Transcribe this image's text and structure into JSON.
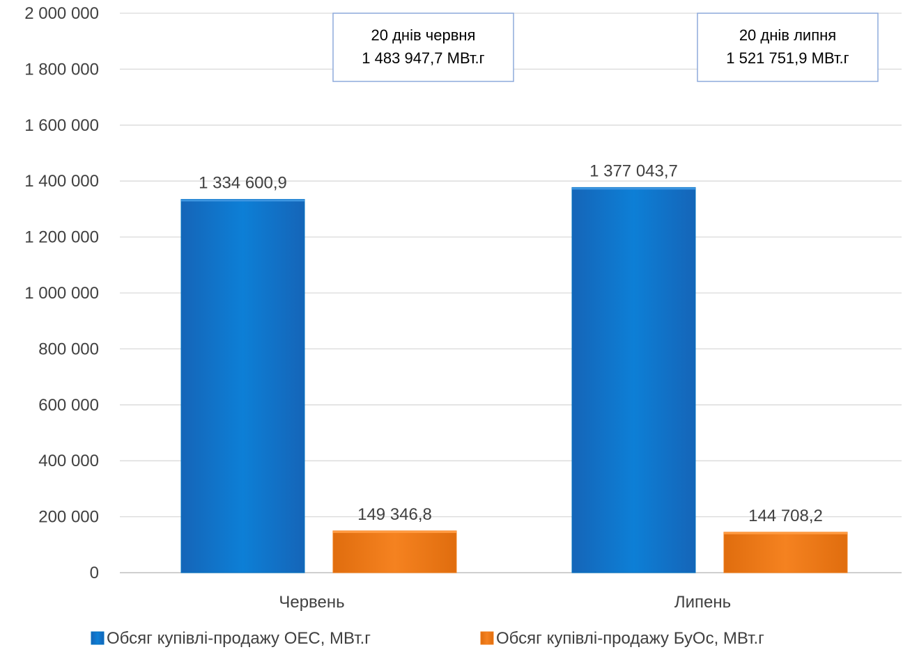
{
  "chart_data": {
    "type": "bar",
    "title": "",
    "xlabel": "",
    "ylabel": "",
    "categories": [
      "Червень",
      "Липень"
    ],
    "series": [
      {
        "name": "Обсяг купівлі-продажу ОЕС, МВт.г",
        "values": [
          1334600.9,
          1377043.7
        ],
        "labels": [
          "1 334 600,9",
          "1 377 043,7"
        ],
        "color": "#0070C0"
      },
      {
        "name": "Обсяг купівлі-продажу БуОс, МВт.г",
        "values": [
          149346.8,
          144708.2
        ],
        "labels": [
          "149 346,8",
          "144 708,2"
        ],
        "color": "#F07C18"
      }
    ],
    "ylim": [
      0,
      2000000
    ],
    "yticks": [
      0,
      200000,
      400000,
      600000,
      800000,
      1000000,
      1200000,
      1400000,
      1600000,
      1800000,
      2000000
    ],
    "ytick_labels": [
      "0",
      "200 000",
      "400 000",
      "600 000",
      "800 000",
      "1 000 000",
      "1 200 000",
      "1 400 000",
      "1 600 000",
      "1 800 000",
      "2 000 000"
    ],
    "grid": true,
    "legend_position": "bottom",
    "annotations": [
      {
        "category": "Червень",
        "lines": [
          "20 днів червня",
          "1 483 947,7 МВт.г"
        ]
      },
      {
        "category": "Липень",
        "lines": [
          "20 днів липня",
          "1 521 751,9 МВт.г"
        ]
      }
    ]
  }
}
